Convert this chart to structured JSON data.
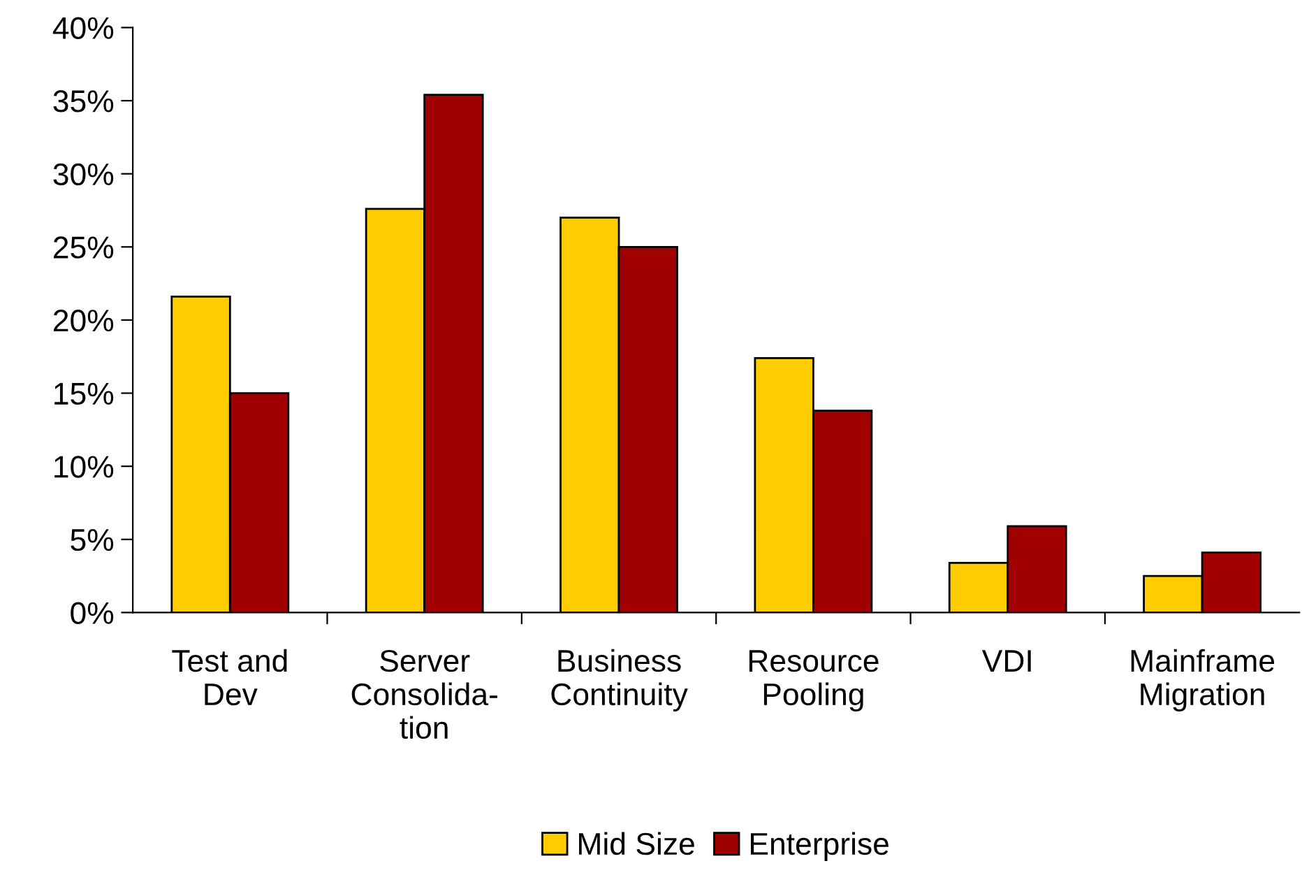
{
  "chart_data": {
    "type": "bar",
    "categories": [
      "Test and\nDev",
      "Server\nConsolida-\ntion",
      "Business\nContinuity",
      "Resource\nPooling",
      "VDI",
      "Mainframe\nMigration"
    ],
    "series": [
      {
        "name": "Mid Size",
        "color": "#ffcc00",
        "values": [
          21.6,
          27.6,
          27.0,
          17.4,
          3.4,
          2.5
        ]
      },
      {
        "name": "Enterprise",
        "color": "#a00000",
        "values": [
          15.0,
          35.4,
          25.0,
          13.8,
          5.9,
          4.1
        ]
      }
    ],
    "ylim": [
      0,
      40
    ],
    "yticks": [
      {
        "value": 0,
        "label": "0%"
      },
      {
        "value": 5,
        "label": "5%"
      },
      {
        "value": 10,
        "label": "10%"
      },
      {
        "value": 15,
        "label": "15%"
      },
      {
        "value": 20,
        "label": "20%"
      },
      {
        "value": 25,
        "label": "25%"
      },
      {
        "value": 30,
        "label": "30%"
      },
      {
        "value": 35,
        "label": "35%"
      },
      {
        "value": 40,
        "label": "40%"
      }
    ],
    "grid": false,
    "legend": "bottom"
  }
}
